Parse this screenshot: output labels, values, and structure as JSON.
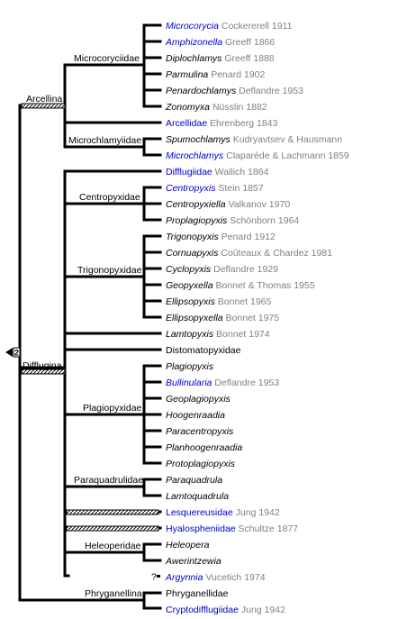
{
  "colors": {
    "line": "#000000",
    "link": "#0000cc",
    "authority": "#808080",
    "text": "#000000"
  },
  "marker": "2",
  "groups": {
    "arcellina": "Arcellina",
    "microcoryciidae": "Microcoryciidae",
    "microchlamyiidae": "Microchlamyiidae",
    "difflugina": "Difflugina",
    "centropyxidae": "Centropyxidae",
    "trigonopyxidae": "Trigonopyxidae",
    "plagiopyxidae": "Plagiopyxidae",
    "paraquadrulidae": "Paraquadrulidae",
    "heleoperidae": "Heleoperidae",
    "phryganellina": "Phryganellina"
  },
  "taxa": [
    {
      "name": "Microcorycia",
      "author": "Cockererell 1911",
      "italic": true,
      "link": true
    },
    {
      "name": "Amphizonella",
      "author": "Greeff 1866",
      "italic": true,
      "link": true
    },
    {
      "name": "Diplochlamys",
      "author": "Greeff 1888",
      "italic": true,
      "link": false
    },
    {
      "name": "Parmulina",
      "author": "Penard 1902",
      "italic": true,
      "link": false
    },
    {
      "name": "Penardochlamys",
      "author": "Deflandre 1953",
      "italic": true,
      "link": false
    },
    {
      "name": "Zonomyxa",
      "author": "Nüsslin 1882",
      "italic": true,
      "link": false
    },
    {
      "name": "Arcellidae",
      "author": "Ehrenberg 1843",
      "italic": false,
      "link": true
    },
    {
      "name": "Spumochlamys",
      "author": "Kudryavtsev & Hausmann",
      "italic": true,
      "link": false
    },
    {
      "name": "Microchlamys",
      "author": "Claparède & Lachmann 1859",
      "italic": true,
      "link": true
    },
    {
      "name": "Difflugiidae",
      "author": "Wallich 1864",
      "italic": false,
      "link": true
    },
    {
      "name": "Centropyxis",
      "author": "Stein 1857",
      "italic": true,
      "link": true
    },
    {
      "name": "Centropyxiella",
      "author": "Valkanov 1970",
      "italic": true,
      "link": false
    },
    {
      "name": "Proplagiopyxis",
      "author": "Schönborn 1964",
      "italic": true,
      "link": false
    },
    {
      "name": "Trigonopyxis",
      "author": "Penard 1912",
      "italic": true,
      "link": false
    },
    {
      "name": "Cornuapyxis",
      "author": "Coûteaux & Chardez 1981",
      "italic": true,
      "link": false
    },
    {
      "name": "Cyclopyxis",
      "author": "Deflandre 1929",
      "italic": true,
      "link": false
    },
    {
      "name": "Geopyxella",
      "author": "Bonnet & Thomas 1955",
      "italic": true,
      "link": false
    },
    {
      "name": "Ellipsopyxis",
      "author": "Bonnet 1965",
      "italic": true,
      "link": false
    },
    {
      "name": "Ellipsopyxella",
      "author": "Bonnet 1975",
      "italic": true,
      "link": false
    },
    {
      "name": "Lamtopyxis",
      "author": "Bonnet 1974",
      "italic": true,
      "link": false
    },
    {
      "name": "Distomatopyxidae",
      "author": "",
      "italic": false,
      "link": false
    },
    {
      "name": "Plagiopyxis",
      "author": "",
      "italic": true,
      "link": false
    },
    {
      "name": "Bullinularia",
      "author": "Deflandre 1953",
      "italic": true,
      "link": true
    },
    {
      "name": "Geoplagiopyxis",
      "author": "",
      "italic": true,
      "link": false
    },
    {
      "name": "Hoogenraadia",
      "author": "",
      "italic": true,
      "link": false
    },
    {
      "name": "Paracentropyxis",
      "author": "",
      "italic": true,
      "link": false
    },
    {
      "name": "Planhoogenraadia",
      "author": "",
      "italic": true,
      "link": false
    },
    {
      "name": "Protoplagiopyxis",
      "author": "",
      "italic": true,
      "link": false
    },
    {
      "name": "Paraquadrula",
      "author": "",
      "italic": true,
      "link": false
    },
    {
      "name": "Lamtoquadrula",
      "author": "",
      "italic": true,
      "link": false
    },
    {
      "name": "Lesquereusidae",
      "author": "Jung 1942",
      "italic": false,
      "link": true
    },
    {
      "name": "Hyalospheniidae",
      "author": "Schultze 1877",
      "italic": false,
      "link": true
    },
    {
      "name": "Heleopera",
      "author": "",
      "italic": true,
      "link": false
    },
    {
      "name": "Awerintzewia",
      "author": "",
      "italic": true,
      "link": false
    },
    {
      "name": "Argynnia",
      "author": "Vucetich 1974",
      "italic": true,
      "link": true,
      "uncertain": "?"
    },
    {
      "name": "Phryganellidae",
      "author": "",
      "italic": false,
      "link": false
    },
    {
      "name": "Cryptodifflugiidae",
      "author": "Jung 1942",
      "italic": false,
      "link": true
    }
  ]
}
